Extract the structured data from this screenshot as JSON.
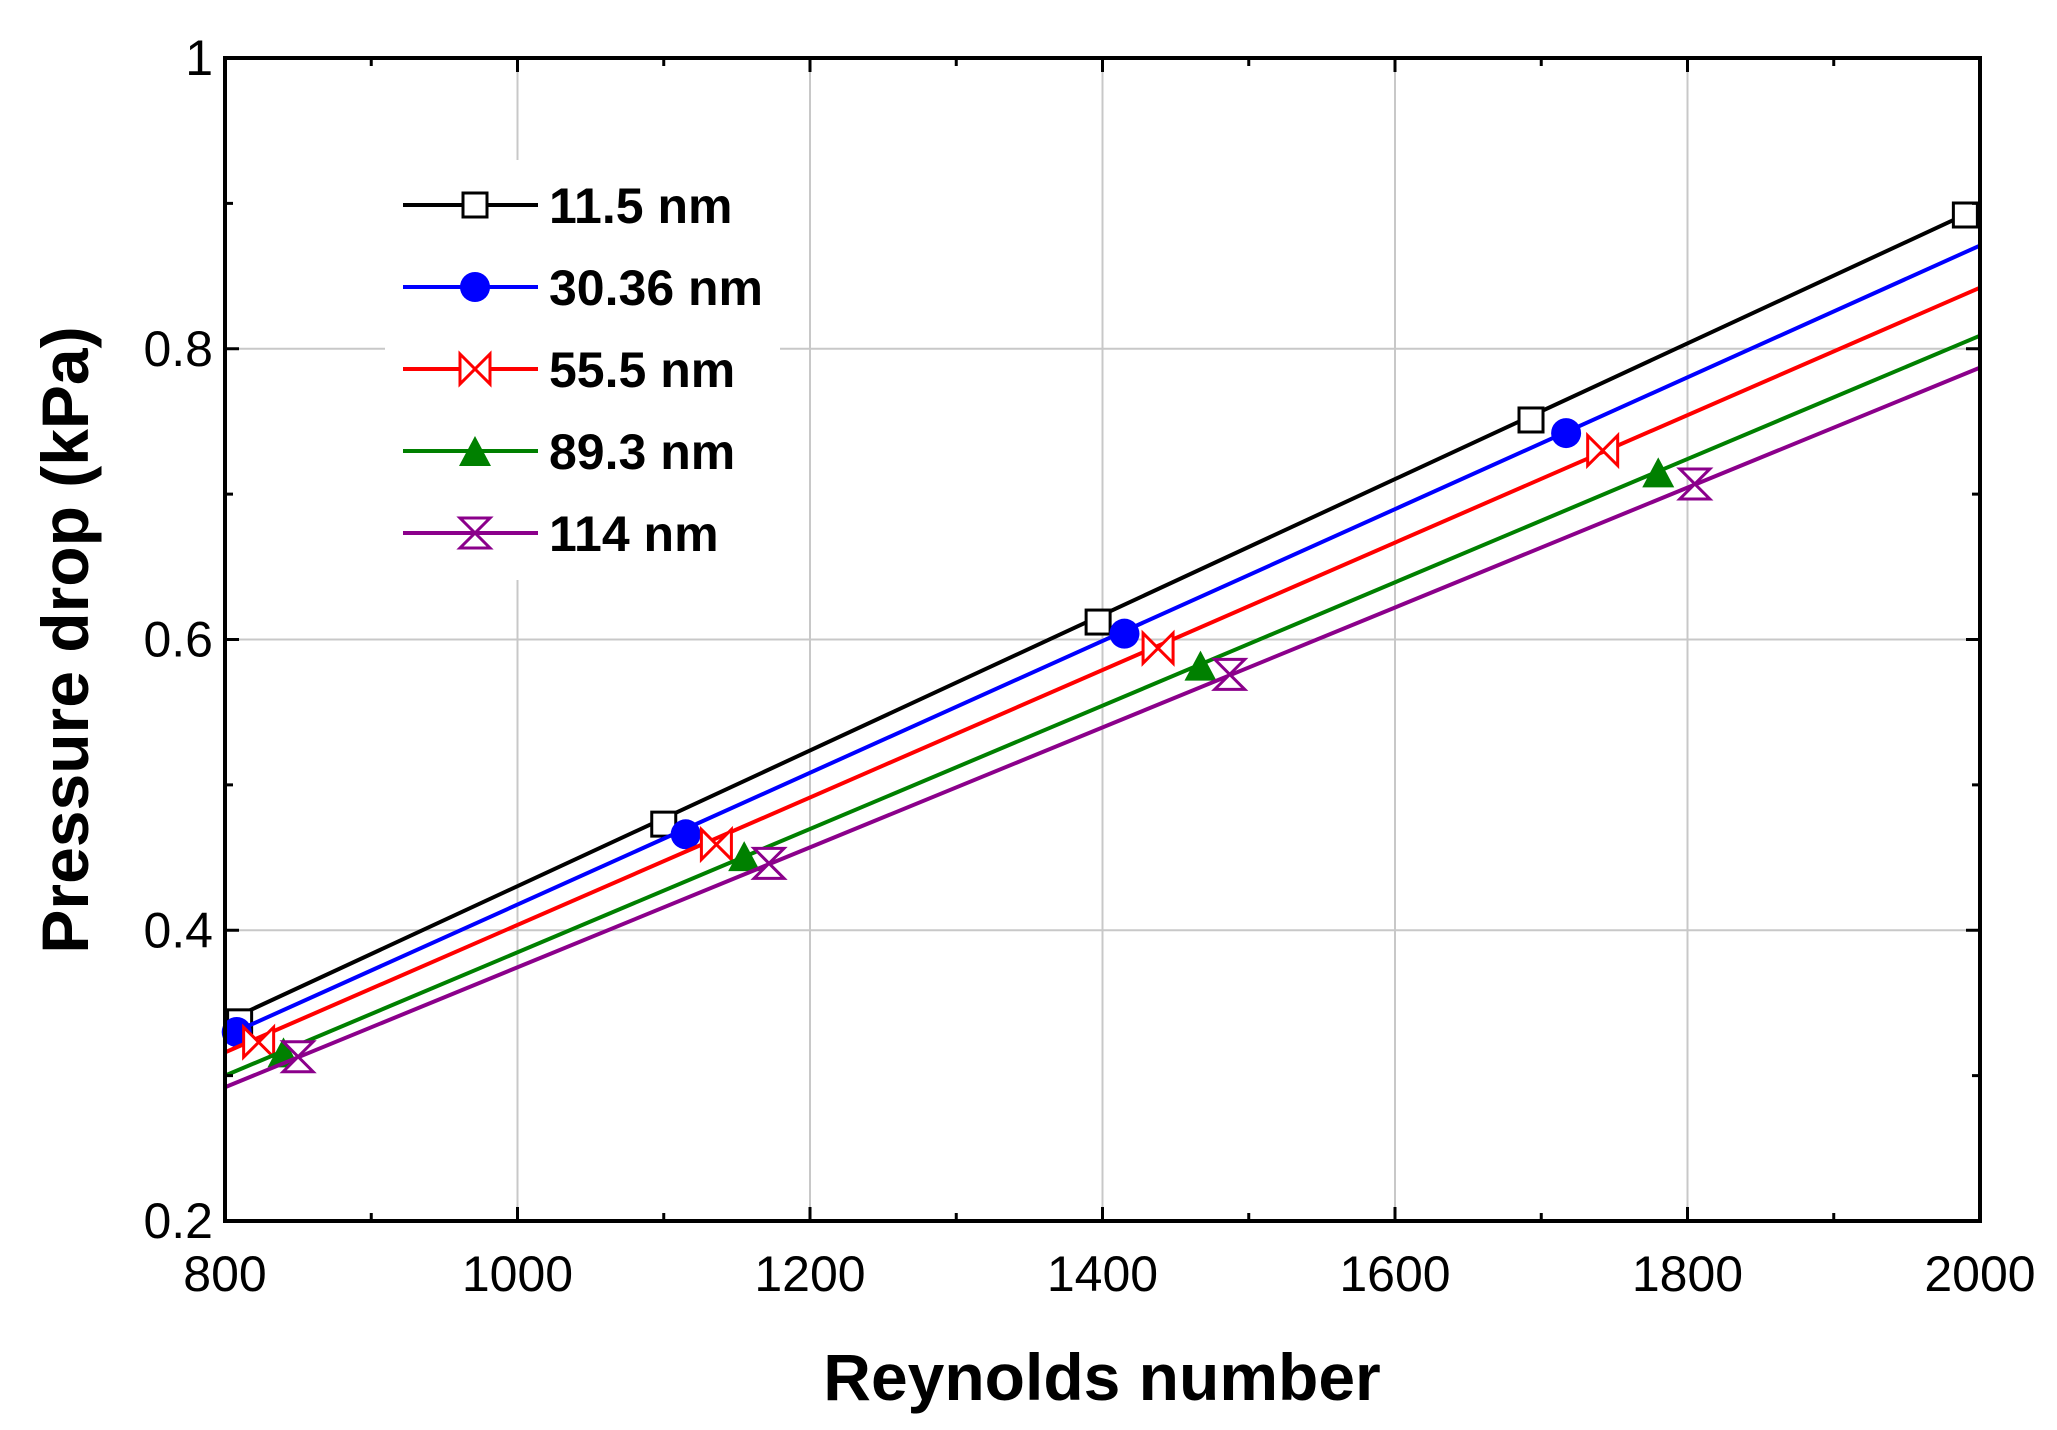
{
  "chart_data": {
    "type": "line",
    "title": "",
    "xlabel": "Reynolds number",
    "ylabel": "Pressure drop (kPa)",
    "xlim": [
      800,
      2000
    ],
    "ylim": [
      0.2,
      1.0
    ],
    "xticks": [
      800,
      1000,
      1200,
      1400,
      1600,
      1800,
      2000
    ],
    "xtick_labels": [
      "800",
      "1000",
      "1200",
      "1400",
      "1600",
      "1800",
      "2000"
    ],
    "yticks": [
      0.2,
      0.4,
      0.6,
      0.8,
      1.0
    ],
    "ytick_labels": [
      "0.2",
      "0.4",
      "0.6",
      "0.8",
      "1"
    ],
    "grid": true,
    "legend_position": "top-left",
    "series": [
      {
        "name": "11.5 nm",
        "color": "#000000",
        "marker": "square-open",
        "line_x": [
          800,
          2000
        ],
        "line_y": [
          0.337,
          0.897
        ],
        "marker_x": [
          810,
          1100,
          1397,
          1693,
          1990
        ],
        "marker_y": [
          0.337,
          0.473,
          0.612,
          0.751,
          0.892
        ]
      },
      {
        "name": "30.36 nm",
        "color": "#0000ff",
        "marker": "circle-filled",
        "line_x": [
          800,
          2000
        ],
        "line_y": [
          0.327,
          0.871
        ],
        "marker_x": [
          808,
          1115,
          1415,
          1717
        ],
        "marker_y": [
          0.33,
          0.466,
          0.604,
          0.742
        ]
      },
      {
        "name": "55.5 nm",
        "color": "#ff0000",
        "marker": "bowtie-open",
        "line_x": [
          800,
          2000
        ],
        "line_y": [
          0.316,
          0.842
        ],
        "marker_x": [
          823,
          1136,
          1438,
          1742
        ],
        "marker_y": [
          0.323,
          0.459,
          0.594,
          0.73
        ]
      },
      {
        "name": "89.3 nm",
        "color": "#008000",
        "marker": "triangle-filled",
        "line_x": [
          800,
          2000
        ],
        "line_y": [
          0.3,
          0.809
        ],
        "marker_x": [
          840,
          1155,
          1467,
          1780
        ],
        "marker_y": [
          0.316,
          0.451,
          0.582,
          0.715
        ]
      },
      {
        "name": "114 nm",
        "color": "#8b008b",
        "marker": "hourglass-open",
        "line_x": [
          800,
          2000
        ],
        "line_y": [
          0.292,
          0.787
        ],
        "marker_x": [
          850,
          1172,
          1487,
          1805
        ],
        "marker_y": [
          0.313,
          0.446,
          0.576,
          0.707
        ]
      }
    ]
  }
}
